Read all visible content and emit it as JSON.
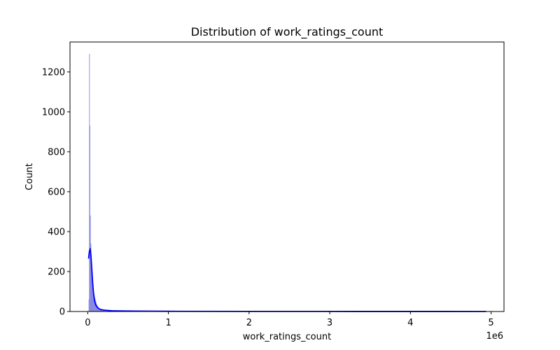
{
  "chart_data": {
    "type": "bar",
    "title": "Distribution of work_ratings_count",
    "xlabel": "work_ratings_count",
    "ylabel": "Count",
    "x_offset_label": "1e6",
    "xlim": [
      -220000,
      5160000
    ],
    "ylim": [
      0,
      1350
    ],
    "grid": false,
    "legend": "none",
    "x_ticks": [
      {
        "value": 0,
        "label": "0"
      },
      {
        "value": 1000000,
        "label": "1"
      },
      {
        "value": 2000000,
        "label": "2"
      },
      {
        "value": 3000000,
        "label": "3"
      },
      {
        "value": 4000000,
        "label": "4"
      },
      {
        "value": 5000000,
        "label": "5"
      }
    ],
    "y_ticks": [
      {
        "value": 0,
        "label": "0"
      },
      {
        "value": 200,
        "label": "200"
      },
      {
        "value": 400,
        "label": "400"
      },
      {
        "value": 600,
        "label": "600"
      },
      {
        "value": 800,
        "label": "800"
      },
      {
        "value": 1000,
        "label": "1000"
      },
      {
        "value": 1200,
        "label": "1200"
      }
    ],
    "histogram": {
      "bin_width": 6000,
      "bin_start": 0,
      "counts": [
        0,
        0,
        60,
        1290,
        930,
        480,
        340,
        260,
        200,
        165,
        140,
        120,
        100,
        85,
        72,
        62,
        52,
        44,
        37,
        31,
        26,
        22,
        19,
        16,
        13,
        11,
        9,
        8,
        7,
        6,
        5,
        4,
        4,
        3,
        3,
        2,
        2,
        2,
        1,
        1,
        1,
        1
      ],
      "bar_fill": "#6b6bdc",
      "bar_edge": "#4a4ad0"
    },
    "series": [
      {
        "type": "kde",
        "color": "#0000ff",
        "x": [
          10000,
          20000,
          30000,
          40000,
          50000,
          60000,
          70000,
          80000,
          90000,
          100000,
          120000,
          140000,
          160000,
          200000,
          250000,
          300000,
          400000,
          600000,
          1000000,
          2000000,
          3000000,
          4000000,
          4940000
        ],
        "y": [
          265,
          300,
          315,
          280,
          215,
          150,
          100,
          65,
          45,
          32,
          20,
          14,
          10,
          7,
          5,
          4,
          3,
          2,
          1,
          0.5,
          0.3,
          0.2,
          0.1
        ]
      }
    ]
  }
}
